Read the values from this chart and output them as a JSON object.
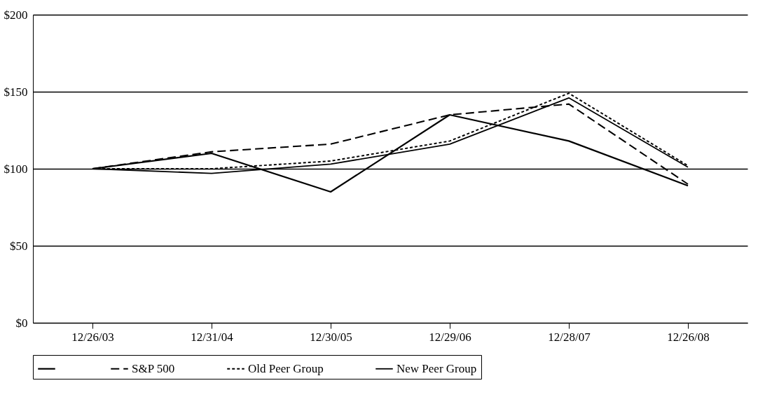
{
  "chart_data": {
    "type": "line",
    "categories": [
      "12/26/03",
      "12/31/04",
      "12/30/05",
      "12/29/06",
      "12/28/07",
      "12/26/08"
    ],
    "series": [
      {
        "color": "#000000",
        "line_style": "solid",
        "values": [
          100,
          110,
          85,
          135,
          118,
          89
        ]
      },
      {
        "name": "S&P 500",
        "color": "#000000",
        "line_style": "dashed",
        "values": [
          100,
          111,
          116,
          135,
          142,
          90
        ]
      },
      {
        "name": "Old Peer Group",
        "color": "#000000",
        "line_style": "dotted",
        "values": [
          100,
          100,
          105,
          118,
          149,
          102
        ]
      },
      {
        "name": "New Peer Group",
        "color": "#000000",
        "line_style": "solid",
        "values": [
          100,
          97,
          103,
          116,
          146,
          101
        ]
      }
    ],
    "ylim": [
      0,
      200
    ],
    "yticks": [
      {
        "value": 0,
        "label": "$0"
      },
      {
        "value": 50,
        "label": "$50"
      },
      {
        "value": 100,
        "label": "$100"
      },
      {
        "value": 150,
        "label": "$150"
      },
      {
        "value": 200,
        "label": "$200"
      }
    ],
    "grid": "y",
    "legend": "bottom"
  }
}
